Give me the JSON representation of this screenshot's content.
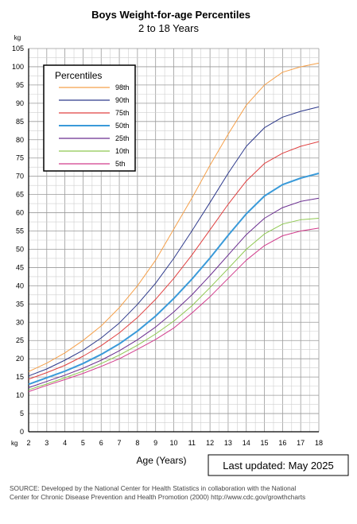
{
  "chart_data": {
    "type": "line",
    "title": "Boys Weight-for-age Percentiles",
    "subtitle": "2 to 18 Years",
    "xlabel": "Age (Years)",
    "ylabel": "kg",
    "x_unit_label": "kg",
    "xlim": [
      2,
      18
    ],
    "ylim": [
      0,
      105
    ],
    "x_ticks": [
      2,
      3,
      4,
      5,
      6,
      7,
      8,
      9,
      10,
      11,
      12,
      13,
      14,
      15,
      16,
      17,
      18
    ],
    "y_ticks": [
      0,
      5,
      10,
      15,
      20,
      25,
      30,
      35,
      40,
      45,
      50,
      55,
      60,
      65,
      70,
      75,
      80,
      85,
      90,
      95,
      100,
      105
    ],
    "grid": true,
    "legend_title": "Percentiles",
    "legend_position": "top-left",
    "x": [
      2,
      3,
      4,
      5,
      6,
      7,
      8,
      9,
      10,
      11,
      12,
      13,
      14,
      15,
      16,
      17,
      18
    ],
    "series": [
      {
        "name": "98th",
        "color": "#f5a04a",
        "values": [
          16.5,
          18.8,
          21.6,
          25,
          29,
          34,
          40,
          47,
          55.5,
          64,
          73,
          81.5,
          89.5,
          95,
          98.5,
          100,
          101
        ]
      },
      {
        "name": "90th",
        "color": "#2e3a8c",
        "values": [
          15.3,
          17.2,
          19.6,
          22.3,
          25.7,
          29.8,
          34.9,
          40.7,
          47.5,
          55,
          62.8,
          70.8,
          78.2,
          83.3,
          86.2,
          87.8,
          89
        ]
      },
      {
        "name": "75th",
        "color": "#e04040",
        "values": [
          14.4,
          16.2,
          18.2,
          20.7,
          23.6,
          27.1,
          31.3,
          36.3,
          42,
          48.4,
          55.3,
          62.3,
          68.7,
          73.5,
          76.3,
          78.2,
          79.5
        ]
      },
      {
        "name": "50th",
        "color": "#3a9ad9",
        "values": [
          13,
          14.8,
          16.6,
          18.7,
          21.2,
          24.1,
          27.6,
          31.7,
          36.5,
          41.8,
          47.6,
          53.8,
          59.7,
          64.6,
          67.7,
          69.5,
          70.8
        ]
      },
      {
        "name": "25th",
        "color": "#6a2d90",
        "values": [
          12.1,
          13.8,
          15.5,
          17.4,
          19.6,
          22.2,
          25.2,
          28.7,
          32.8,
          37.5,
          42.8,
          48.4,
          54,
          58.5,
          61.4,
          63.1,
          64
        ]
      },
      {
        "name": "10th",
        "color": "#8ec850",
        "values": [
          11.5,
          13.1,
          14.8,
          16.6,
          18.7,
          21,
          23.7,
          26.8,
          30.3,
          34.5,
          39.5,
          44.7,
          50,
          54.2,
          56.9,
          58.1,
          58.5
        ]
      },
      {
        "name": "5th",
        "color": "#d23c8c",
        "values": [
          11,
          12.7,
          14.3,
          16,
          17.9,
          20,
          22.6,
          25.3,
          28.4,
          32.5,
          37,
          42,
          47,
          51,
          53.7,
          55,
          55.8
        ]
      }
    ]
  },
  "footer": {
    "last_updated": "Last updated: May 2025",
    "source_line1": "SOURCE: Developed by the National Center for Health Statistics in collaboration with the National",
    "source_line2": "Center for Chronic Disease Prevention and Health Promotion (2000) http://www.cdc.gov/growthcharts"
  }
}
